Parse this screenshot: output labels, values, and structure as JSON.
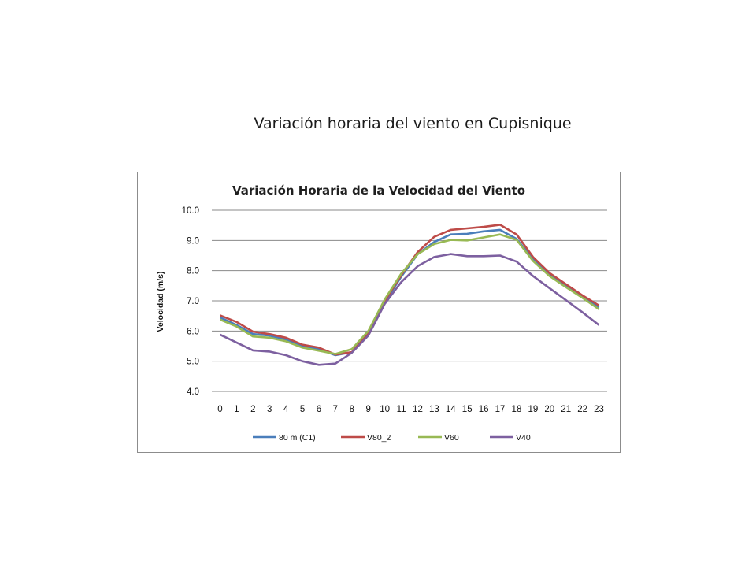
{
  "slide": {
    "title": "Variación horaria del viento en Cupisnique"
  },
  "chart_data": {
    "type": "line",
    "title": "Variación Horaria de la Velocidad del Viento",
    "xlabel": "",
    "ylabel": "Velocidad (m/s)",
    "ylim": [
      4.0,
      10.0
    ],
    "yticks": [
      "4.0",
      "5.0",
      "6.0",
      "7.0",
      "8.0",
      "9.0",
      "10.0"
    ],
    "grid": true,
    "legend_position": "bottom",
    "categories": [
      "0",
      "1",
      "2",
      "3",
      "4",
      "5",
      "6",
      "7",
      "8",
      "9",
      "10",
      "11",
      "12",
      "13",
      "14",
      "15",
      "16",
      "17",
      "18",
      "19",
      "20",
      "21",
      "22",
      "23"
    ],
    "series": [
      {
        "name": "80 m (C1)",
        "color": "#4a7ebb",
        "values": [
          6.45,
          6.2,
          5.9,
          5.85,
          5.72,
          5.5,
          5.4,
          5.2,
          5.3,
          5.9,
          6.95,
          7.8,
          8.55,
          8.95,
          9.2,
          9.22,
          9.3,
          9.35,
          9.05,
          8.38,
          7.85,
          7.48,
          7.12,
          6.78
        ]
      },
      {
        "name": "V80_2",
        "color": "#be4b48",
        "values": [
          6.52,
          6.3,
          5.98,
          5.9,
          5.78,
          5.55,
          5.45,
          5.22,
          5.3,
          5.92,
          7.0,
          7.85,
          8.62,
          9.12,
          9.35,
          9.4,
          9.45,
          9.52,
          9.2,
          8.45,
          7.92,
          7.55,
          7.18,
          6.85
        ]
      },
      {
        "name": "V60",
        "color": "#98b954",
        "values": [
          6.38,
          6.15,
          5.82,
          5.78,
          5.66,
          5.45,
          5.35,
          5.24,
          5.4,
          6.0,
          7.05,
          7.9,
          8.55,
          8.88,
          9.02,
          9.0,
          9.1,
          9.2,
          9.02,
          8.32,
          7.82,
          7.45,
          7.1,
          6.72
        ]
      },
      {
        "name": "V40",
        "color": "#7d60a0",
        "values": [
          5.88,
          5.62,
          5.36,
          5.32,
          5.2,
          5.0,
          4.88,
          4.92,
          5.28,
          5.85,
          6.9,
          7.62,
          8.15,
          8.45,
          8.55,
          8.48,
          8.48,
          8.5,
          8.3,
          7.82,
          7.42,
          7.02,
          6.62,
          6.2
        ]
      }
    ]
  }
}
